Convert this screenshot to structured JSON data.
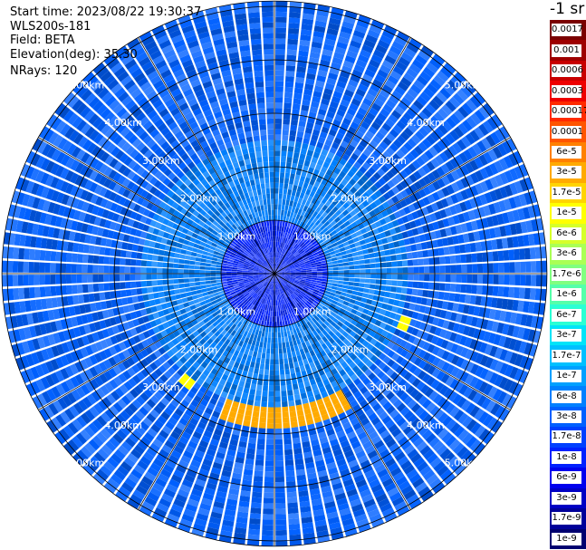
{
  "info": {
    "start_time": "Start time: 2023/08/22 19:30:37",
    "device": "WLS200s-181",
    "field": "Field: BETA",
    "elevation": "Elevation(deg): 35.30",
    "nrays": "NRays: 120"
  },
  "colorbar": {
    "unit_label": "-1 sr",
    "labels": [
      "0.0017",
      "0.001",
      "0.0006",
      "0.0003",
      "0.00017",
      "0.0001",
      "6e-5",
      "3e-5",
      "1.7e-5",
      "1e-5",
      "6e-6",
      "3e-6",
      "1.7e-6",
      "1e-6",
      "6e-7",
      "3e-7",
      "1.7e-7",
      "1e-7",
      "6e-8",
      "3e-8",
      "1.7e-8",
      "1e-8",
      "6e-9",
      "3e-9",
      "1.7e-9",
      "1e-9"
    ],
    "colors": [
      "#7a0000",
      "#9e0000",
      "#c80000",
      "#ee0000",
      "#ff2a00",
      "#ff5500",
      "#ff8000",
      "#ffaa00",
      "#ffd400",
      "#ffff00",
      "#d6ff29",
      "#aaff55",
      "#80ff80",
      "#55ffaa",
      "#2affd4",
      "#00e4f8",
      "#00c0ff",
      "#00a0ff",
      "#0080ff",
      "#0060ff",
      "#0040ff",
      "#0020ff",
      "#0000ee",
      "#0000c4",
      "#00009a",
      "#000070"
    ]
  },
  "chart_data": {
    "type": "heatmap",
    "projection": "polar PPI",
    "field": "BETA",
    "elevation_deg": 35.3,
    "n_rays": 120,
    "range_rings_km": [
      1,
      2,
      3,
      4,
      5
    ],
    "range_ring_labels": [
      "1.00km",
      "2.00km",
      "3.00km",
      "4.00km",
      "5.00km"
    ],
    "max_range_km": 5.1,
    "radial_lines_deg": [
      0,
      30,
      60,
      90,
      120,
      150,
      180,
      210,
      240,
      270,
      300,
      330
    ],
    "scale": "log",
    "value_range": [
      1e-09,
      0.0017
    ],
    "typical_values": {
      "inner_0_to_1km": "1e-8",
      "ring_1_to_2.5km": "6e-8",
      "outer_2.5_to_5km": "3e-8"
    },
    "features": [
      {
        "description": "high backscatter arc to the south",
        "range_km": [
          2.5,
          2.9
        ],
        "azimuth_deg": [
          150,
          200
        ],
        "value": "3e-5"
      },
      {
        "description": "isolated cell east-southeast",
        "range_km": 2.6,
        "azimuth_deg": 110,
        "value": "1e-5"
      },
      {
        "description": "isolated cell southwest",
        "range_km": 2.6,
        "azimuth_deg": 220,
        "value": "1e-5"
      }
    ]
  }
}
